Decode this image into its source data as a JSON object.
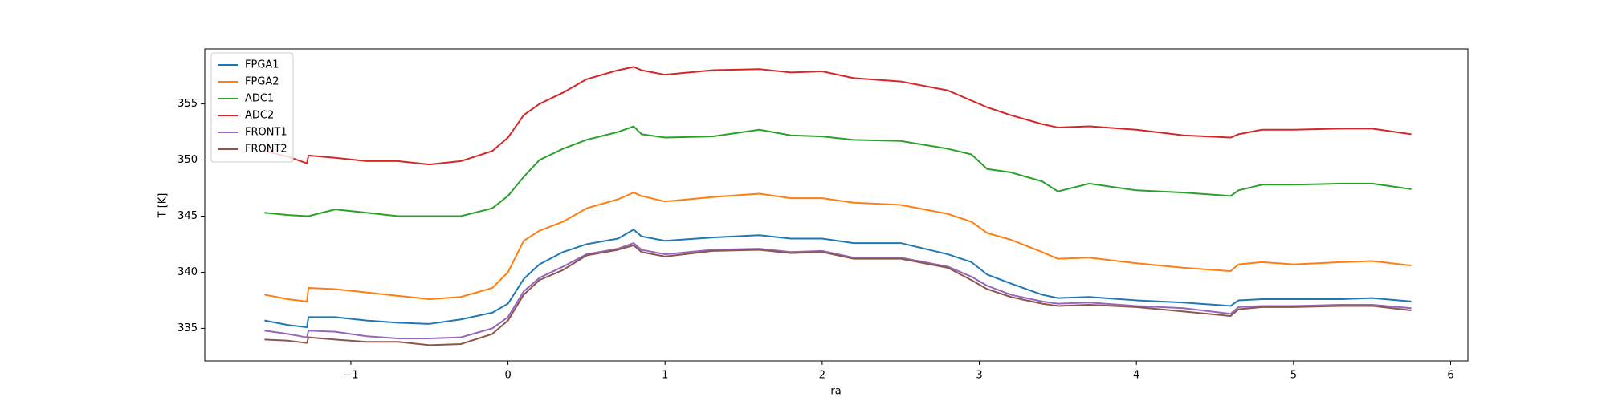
{
  "chart_data": {
    "type": "line",
    "x_label": "ra",
    "y_label": "T [K]",
    "legend": "upper left",
    "grid": false,
    "xlim": [
      -1.93,
      6.11
    ],
    "ylim": [
      332.1,
      359.9
    ],
    "xticks": [
      {
        "value": -1,
        "label": "−1"
      },
      0,
      1,
      2,
      3,
      4,
      5,
      6
    ],
    "yticks": [
      335,
      340,
      345,
      350,
      355
    ],
    "x": [
      -1.55,
      -1.4,
      -1.28,
      -1.27,
      -1.1,
      -0.9,
      -0.7,
      -0.5,
      -0.3,
      -0.1,
      0,
      0.1,
      0.2,
      0.35,
      0.5,
      0.7,
      0.8,
      0.85,
      1.0,
      1.3,
      1.6,
      1.8,
      2.0,
      2.2,
      2.5,
      2.8,
      2.95,
      3.05,
      3.2,
      3.4,
      3.5,
      3.7,
      4.0,
      4.3,
      4.6,
      4.65,
      4.8,
      5.0,
      5.3,
      5.5,
      5.75
    ],
    "series": [
      {
        "name": "FPGA1",
        "color": "#1f77b4",
        "values": [
          335.7,
          335.3,
          335.1,
          336.0,
          336.0,
          335.7,
          335.5,
          335.4,
          335.8,
          336.4,
          337.2,
          339.4,
          340.7,
          341.8,
          342.5,
          343.0,
          343.8,
          343.2,
          342.8,
          343.1,
          343.3,
          343.0,
          343.0,
          342.6,
          342.6,
          341.6,
          340.9,
          339.8,
          339.0,
          338.0,
          337.7,
          337.8,
          337.5,
          337.3,
          337.0,
          337.5,
          337.6,
          337.6,
          337.6,
          337.7,
          337.4
        ]
      },
      {
        "name": "FPGA2",
        "color": "#ff7f0e",
        "values": [
          338.0,
          337.6,
          337.4,
          338.6,
          338.5,
          338.2,
          337.9,
          337.6,
          337.8,
          338.6,
          340.0,
          342.8,
          343.7,
          344.5,
          345.7,
          346.5,
          347.1,
          346.8,
          346.3,
          346.7,
          347.0,
          346.6,
          346.6,
          346.2,
          346.0,
          345.2,
          344.5,
          343.5,
          342.9,
          341.8,
          341.2,
          341.3,
          340.8,
          340.4,
          340.1,
          340.7,
          340.9,
          340.7,
          340.9,
          341.0,
          340.6
        ]
      },
      {
        "name": "ADC1",
        "color": "#2ca02c",
        "values": [
          345.3,
          345.1,
          345.0,
          345.0,
          345.6,
          345.3,
          345.0,
          345.0,
          345.0,
          345.7,
          346.8,
          348.5,
          350.0,
          351.0,
          351.8,
          352.5,
          353.0,
          352.3,
          352.0,
          352.1,
          352.7,
          352.2,
          352.1,
          351.8,
          351.7,
          351.0,
          350.5,
          349.2,
          348.9,
          348.1,
          347.2,
          347.9,
          347.3,
          347.1,
          346.8,
          347.3,
          347.8,
          347.8,
          347.9,
          347.9,
          347.4
        ]
      },
      {
        "name": "ADC2",
        "color": "#d62728",
        "values": [
          350.8,
          350.3,
          349.7,
          350.4,
          350.2,
          349.9,
          349.9,
          349.6,
          349.9,
          350.8,
          352.0,
          354.0,
          355.0,
          356.0,
          357.2,
          358.0,
          358.3,
          358.0,
          357.6,
          358.0,
          358.1,
          357.8,
          357.9,
          357.3,
          357.0,
          356.2,
          355.3,
          354.7,
          354.0,
          353.2,
          352.9,
          353.0,
          352.7,
          352.2,
          352.0,
          352.3,
          352.7,
          352.7,
          352.8,
          352.8,
          352.3
        ]
      },
      {
        "name": "FRONT1",
        "color": "#9467bd",
        "values": [
          334.8,
          334.5,
          334.2,
          334.8,
          334.7,
          334.3,
          334.1,
          334.1,
          334.2,
          335.0,
          336.0,
          338.3,
          339.5,
          340.5,
          341.6,
          342.1,
          342.6,
          342.0,
          341.6,
          342.0,
          342.1,
          341.8,
          341.9,
          341.3,
          341.3,
          340.5,
          339.6,
          338.8,
          338.0,
          337.4,
          337.2,
          337.3,
          337.0,
          336.8,
          336.3,
          336.9,
          337.0,
          337.0,
          337.1,
          337.1,
          336.8
        ]
      },
      {
        "name": "FRONT2",
        "color": "#8c564b",
        "values": [
          334.0,
          333.9,
          333.7,
          334.2,
          334.0,
          333.8,
          333.8,
          333.5,
          333.6,
          334.5,
          335.7,
          338.0,
          339.3,
          340.2,
          341.5,
          342.0,
          342.4,
          341.8,
          341.4,
          341.9,
          342.0,
          341.7,
          341.8,
          341.2,
          341.2,
          340.4,
          339.3,
          338.5,
          337.8,
          337.2,
          337.0,
          337.1,
          336.9,
          336.5,
          336.1,
          336.7,
          336.9,
          336.9,
          337.0,
          337.0,
          336.6
        ]
      }
    ]
  }
}
